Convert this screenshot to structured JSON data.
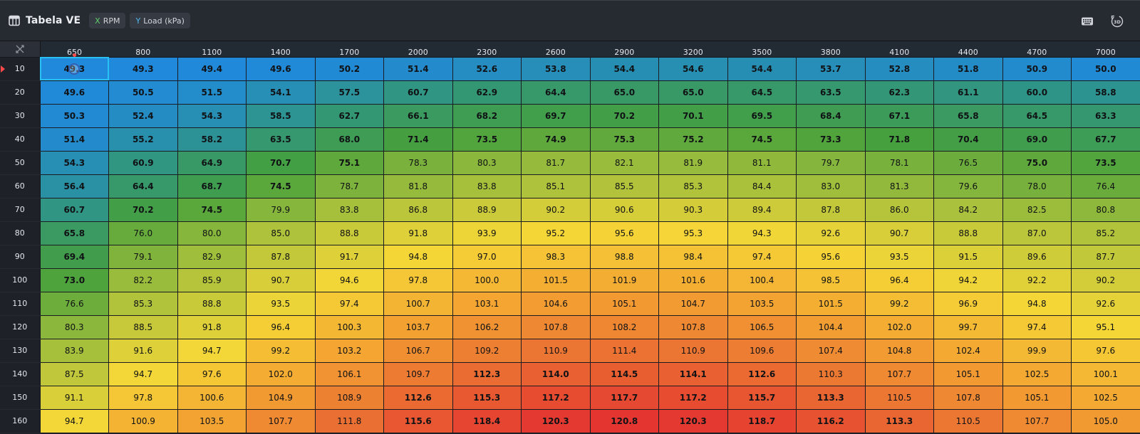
{
  "toolbar": {
    "title": "Tabela VE",
    "x_axis_letter": "X",
    "x_axis_label": "RPM",
    "y_axis_letter": "Y",
    "y_axis_label": "Load (kPa)",
    "icons": [
      "table-icon",
      "keyboard-icon",
      "3d-view-icon"
    ],
    "view3d_label": "3D"
  },
  "colors": {
    "toolbar_bg": "#262a31",
    "selection_outline": "#29c0f3",
    "axis_x": "#5fd06a",
    "axis_y": "#4fb7f0",
    "marker": "#ff4a4a"
  },
  "table": {
    "corner_icon": "swap-axes-icon",
    "selected": {
      "row": 0,
      "col": 0
    },
    "active_col": 0,
    "active_row": 0,
    "rpm": [
      "650",
      "800",
      "1100",
      "1400",
      "1700",
      "2000",
      "2300",
      "2600",
      "2900",
      "3200",
      "3500",
      "3800",
      "4100",
      "4400",
      "4700",
      "7000"
    ],
    "load": [
      "10",
      "20",
      "30",
      "40",
      "50",
      "60",
      "70",
      "80",
      "90",
      "100",
      "110",
      "120",
      "130",
      "140",
      "150",
      "160"
    ],
    "values": [
      [
        "49.3",
        "49.3",
        "49.4",
        "49.6",
        "50.2",
        "51.4",
        "52.6",
        "53.8",
        "54.4",
        "54.6",
        "54.4",
        "53.7",
        "52.8",
        "51.8",
        "50.9",
        "50.0"
      ],
      [
        "49.6",
        "50.5",
        "51.5",
        "54.1",
        "57.5",
        "60.7",
        "62.9",
        "64.4",
        "65.0",
        "65.0",
        "64.5",
        "63.5",
        "62.3",
        "61.1",
        "60.0",
        "58.8"
      ],
      [
        "50.3",
        "52.4",
        "54.3",
        "58.5",
        "62.7",
        "66.1",
        "68.2",
        "69.7",
        "70.2",
        "70.1",
        "69.5",
        "68.4",
        "67.1",
        "65.8",
        "64.5",
        "63.3"
      ],
      [
        "51.4",
        "55.2",
        "58.2",
        "63.5",
        "68.0",
        "71.4",
        "73.5",
        "74.9",
        "75.3",
        "75.2",
        "74.5",
        "73.3",
        "71.8",
        "70.4",
        "69.0",
        "67.7"
      ],
      [
        "54.3",
        "60.9",
        "64.9",
        "70.7",
        "75.1",
        "78.3",
        "80.3",
        "81.7",
        "82.1",
        "81.9",
        "81.1",
        "79.7",
        "78.1",
        "76.5",
        "75.0",
        "73.5"
      ],
      [
        "56.4",
        "64.4",
        "68.7",
        "74.5",
        "78.7",
        "81.8",
        "83.8",
        "85.1",
        "85.5",
        "85.3",
        "84.4",
        "83.0",
        "81.3",
        "79.6",
        "78.0",
        "76.4"
      ],
      [
        "60.7",
        "70.2",
        "74.5",
        "79.9",
        "83.8",
        "86.8",
        "88.9",
        "90.2",
        "90.6",
        "90.3",
        "89.4",
        "87.8",
        "86.0",
        "84.2",
        "82.5",
        "80.8"
      ],
      [
        "65.8",
        "76.0",
        "80.0",
        "85.0",
        "88.8",
        "91.8",
        "93.9",
        "95.2",
        "95.6",
        "95.3",
        "94.3",
        "92.6",
        "90.7",
        "88.8",
        "87.0",
        "85.2"
      ],
      [
        "69.4",
        "79.1",
        "82.9",
        "87.8",
        "91.7",
        "94.8",
        "97.0",
        "98.3",
        "98.8",
        "98.4",
        "97.4",
        "95.6",
        "93.5",
        "91.5",
        "89.6",
        "87.7"
      ],
      [
        "73.0",
        "82.2",
        "85.9",
        "90.7",
        "94.6",
        "97.8",
        "100.0",
        "101.5",
        "101.9",
        "101.6",
        "100.4",
        "98.5",
        "96.4",
        "94.2",
        "92.2",
        "90.2"
      ],
      [
        "76.6",
        "85.3",
        "88.8",
        "93.5",
        "97.4",
        "100.7",
        "103.1",
        "104.6",
        "105.1",
        "104.7",
        "103.5",
        "101.5",
        "99.2",
        "96.9",
        "94.8",
        "92.6"
      ],
      [
        "80.3",
        "88.5",
        "91.8",
        "96.4",
        "100.3",
        "103.7",
        "106.2",
        "107.8",
        "108.2",
        "107.8",
        "106.5",
        "104.4",
        "102.0",
        "99.7",
        "97.4",
        "95.1"
      ],
      [
        "83.9",
        "91.6",
        "94.7",
        "99.2",
        "103.2",
        "106.7",
        "109.2",
        "110.9",
        "111.4",
        "110.9",
        "109.6",
        "107.4",
        "104.8",
        "102.4",
        "99.9",
        "97.6"
      ],
      [
        "87.5",
        "94.7",
        "97.6",
        "102.0",
        "106.1",
        "109.7",
        "112.3",
        "114.0",
        "114.5",
        "114.1",
        "112.6",
        "110.3",
        "107.7",
        "105.1",
        "102.5",
        "100.1"
      ],
      [
        "91.1",
        "97.8",
        "100.6",
        "104.9",
        "108.9",
        "112.6",
        "115.3",
        "117.2",
        "117.7",
        "117.2",
        "115.7",
        "113.3",
        "110.5",
        "107.8",
        "105.1",
        "102.5"
      ],
      [
        "94.7",
        "100.9",
        "103.5",
        "107.7",
        "111.8",
        "115.6",
        "118.4",
        "120.3",
        "120.8",
        "120.3",
        "118.7",
        "116.2",
        "113.3",
        "110.5",
        "107.7",
        "105.0"
      ]
    ]
  }
}
